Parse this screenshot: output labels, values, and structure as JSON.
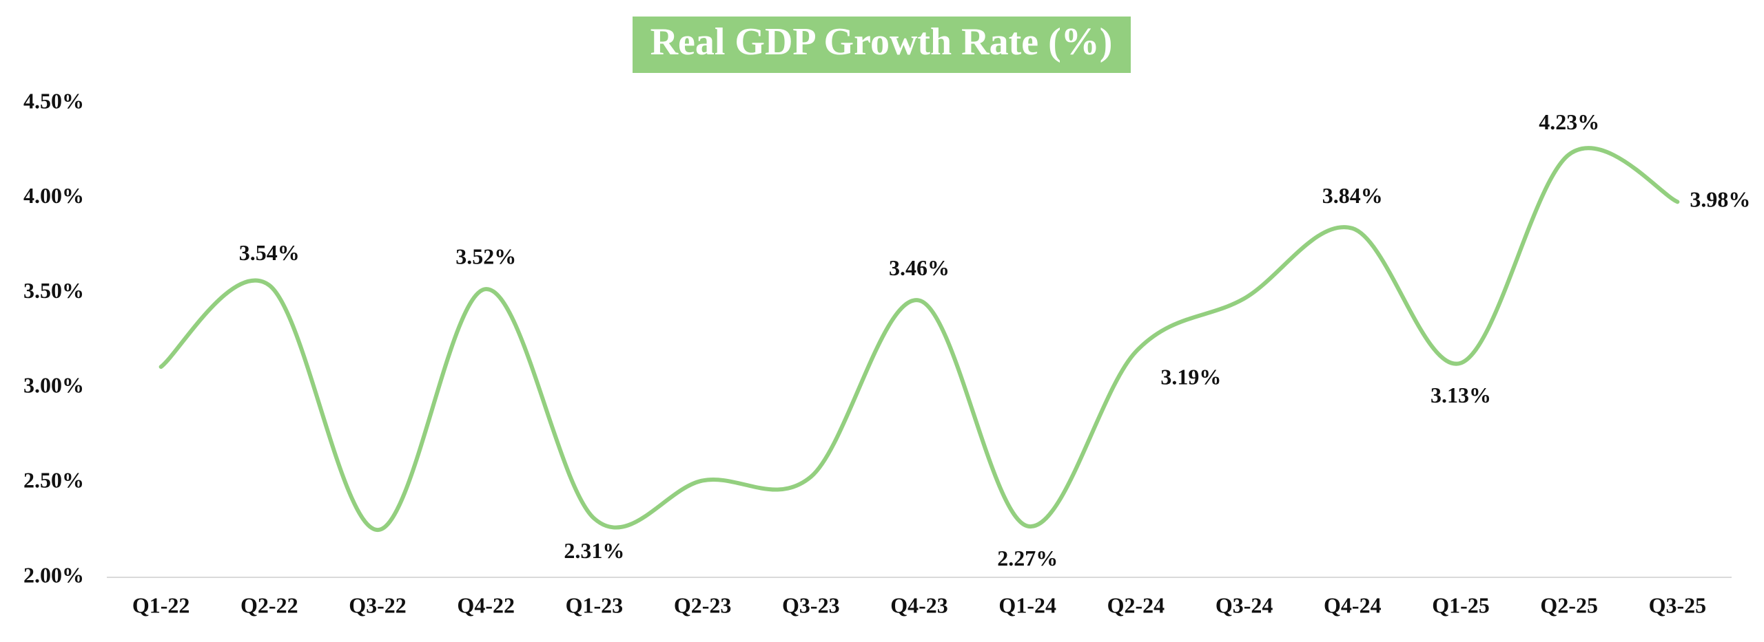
{
  "chart_data": {
    "type": "line",
    "title": "Real GDP Growth Rate (%)",
    "categories": [
      "Q1-22",
      "Q2-22",
      "Q3-22",
      "Q4-22",
      "Q1-23",
      "Q2-23",
      "Q3-23",
      "Q4-23",
      "Q1-24",
      "Q2-24",
      "Q3-24",
      "Q4-24",
      "Q1-25",
      "Q2-25",
      "Q3-25"
    ],
    "series": [
      {
        "name": "Real GDP Growth Rate",
        "color": "#93cf7f",
        "values": [
          3.11,
          3.54,
          2.25,
          3.52,
          2.31,
          2.51,
          2.53,
          3.46,
          2.27,
          3.19,
          3.47,
          3.84,
          3.13,
          4.23,
          3.98
        ],
        "value_labels": [
          null,
          "3.54%",
          null,
          "3.52%",
          "2.31%",
          null,
          null,
          "3.46%",
          "2.27%",
          "3.19%",
          null,
          "3.84%",
          "3.13%",
          "4.23%",
          "3.98%"
        ]
      }
    ],
    "ylim": [
      2.0,
      4.5
    ],
    "yticks": [
      {
        "value": 2.0,
        "label": "2.00%"
      },
      {
        "value": 2.5,
        "label": "2.50%"
      },
      {
        "value": 3.0,
        "label": "3.00%"
      },
      {
        "value": 3.5,
        "label": "3.50%"
      },
      {
        "value": 4.0,
        "label": "4.00%"
      },
      {
        "value": 4.5,
        "label": "4.50%"
      }
    ],
    "grid": false,
    "smooth": true
  }
}
